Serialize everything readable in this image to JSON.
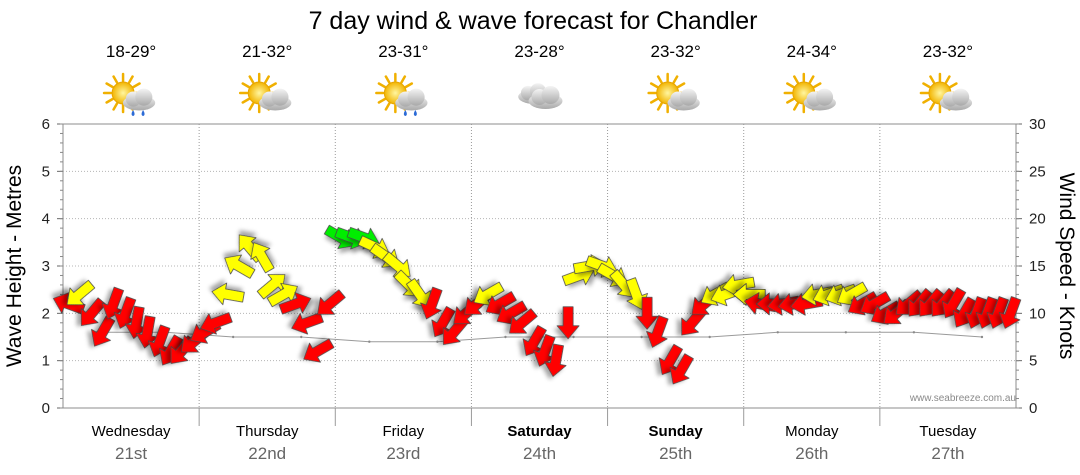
{
  "chart_data": {
    "type": "line",
    "title": "7 day wind & wave forecast for Chandler",
    "ylabel_left": "Wave Height - Metres",
    "ylabel_right": "Wind Speed - Knots",
    "ylim_left": [
      0,
      6
    ],
    "ylim_right": [
      0,
      30
    ],
    "yticks_left": [
      "0",
      "1",
      "2",
      "3",
      "4",
      "5",
      "6"
    ],
    "yticks_right": [
      "0",
      "5",
      "10",
      "15",
      "20",
      "25",
      "30"
    ],
    "grid": true,
    "watermark": "www.seabreeze.com.au",
    "days": [
      {
        "name": "Wednesday",
        "date": "21st",
        "bold": false,
        "temp": "18-29°",
        "icon": "sun-cloud-rain-icon"
      },
      {
        "name": "Thursday",
        "date": "22nd",
        "bold": false,
        "temp": "21-32°",
        "icon": "sun-cloud-icon"
      },
      {
        "name": "Friday",
        "date": "23rd",
        "bold": false,
        "temp": "23-31°",
        "icon": "sun-cloud-rain-icon"
      },
      {
        "name": "Saturday",
        "date": "24th",
        "bold": true,
        "temp": "23-28°",
        "icon": "cloud-icon"
      },
      {
        "name": "Sunday",
        "date": "25th",
        "bold": true,
        "temp": "23-32°",
        "icon": "sun-cloud-icon"
      },
      {
        "name": "Monday",
        "date": "26th",
        "bold": false,
        "temp": "24-34°",
        "icon": "sun-cloud-icon"
      },
      {
        "name": "Tuesday",
        "date": "27th",
        "bold": false,
        "temp": "23-32°",
        "icon": "sun-cloud-icon"
      }
    ],
    "colors": {
      "calm": "#00ee00",
      "moderate": "#ffff00",
      "strong": "#ff0000"
    },
    "wind_series": {
      "name": "Wind",
      "x_day": [
        0,
        0.08,
        0.17,
        0.25,
        0.33,
        0.42,
        0.5,
        0.58,
        0.67,
        0.75,
        0.83,
        0.92,
        1.0,
        1.08,
        1.17,
        1.25,
        1.33,
        1.42,
        1.5,
        1.58,
        1.67,
        1.75,
        1.83,
        1.92,
        2.0,
        2.08,
        2.17,
        2.25,
        2.33,
        2.42,
        2.5,
        2.58,
        2.67,
        2.75,
        2.83,
        2.92,
        3.0,
        3.08,
        3.17,
        3.25,
        3.33,
        3.42,
        3.5,
        3.58,
        3.67,
        3.75,
        3.83,
        3.92,
        4.0,
        4.08,
        4.17,
        4.25,
        4.33,
        4.42,
        4.5,
        4.58,
        4.67,
        4.75,
        4.83,
        4.92,
        5.0,
        5.08,
        5.17,
        5.25,
        5.33,
        5.42,
        5.5,
        5.58,
        5.67,
        5.75,
        5.83,
        5.92,
        6.0,
        6.08,
        6.17,
        6.25,
        6.33,
        6.42,
        6.5,
        6.58,
        6.67,
        6.75,
        6.83,
        6.92
      ],
      "knots": [
        11,
        12,
        10,
        8,
        11,
        10,
        9,
        8,
        7,
        6,
        6,
        7,
        8,
        9,
        12,
        15,
        17,
        16,
        13,
        12,
        11,
        9,
        6,
        11,
        18,
        18,
        18,
        17,
        16,
        15,
        13,
        12,
        11,
        9,
        8,
        10,
        11,
        12,
        11,
        10,
        9,
        7,
        6,
        5,
        9,
        14,
        15,
        15,
        14,
        13,
        12,
        10,
        8,
        5,
        4,
        9,
        11,
        12,
        12,
        13,
        12,
        11,
        11,
        11,
        11,
        11,
        12,
        12,
        12,
        12,
        11,
        11,
        10,
        10,
        11,
        11,
        11,
        11,
        11,
        10,
        10,
        10,
        10,
        10
      ],
      "direction_deg": [
        200,
        140,
        130,
        120,
        110,
        110,
        100,
        100,
        110,
        120,
        130,
        140,
        150,
        160,
        190,
        210,
        230,
        240,
        320,
        330,
        340,
        160,
        150,
        140,
        30,
        20,
        20,
        25,
        35,
        40,
        45,
        55,
        110,
        120,
        130,
        140,
        140,
        150,
        150,
        150,
        140,
        120,
        110,
        100,
        90,
        340,
        350,
        20,
        30,
        50,
        70,
        90,
        110,
        120,
        120,
        130,
        140,
        150,
        160,
        170,
        180,
        190,
        180,
        170,
        170,
        170,
        170,
        160,
        160,
        150,
        150,
        150,
        150,
        140,
        140,
        130,
        130,
        130,
        120,
        120,
        110,
        110,
        110,
        110
      ]
    },
    "wave_series": {
      "name": "Wave",
      "x_day": [
        0,
        0.5,
        1.0,
        1.5,
        2.0,
        2.5,
        3.0,
        3.5,
        4.0,
        4.5,
        5.0,
        5.5,
        6.0,
        6.5
      ],
      "metres": [
        1.6,
        1.6,
        1.5,
        1.5,
        1.4,
        1.4,
        1.5,
        1.5,
        1.5,
        1.5,
        1.6,
        1.6,
        1.6,
        1.5
      ]
    }
  }
}
